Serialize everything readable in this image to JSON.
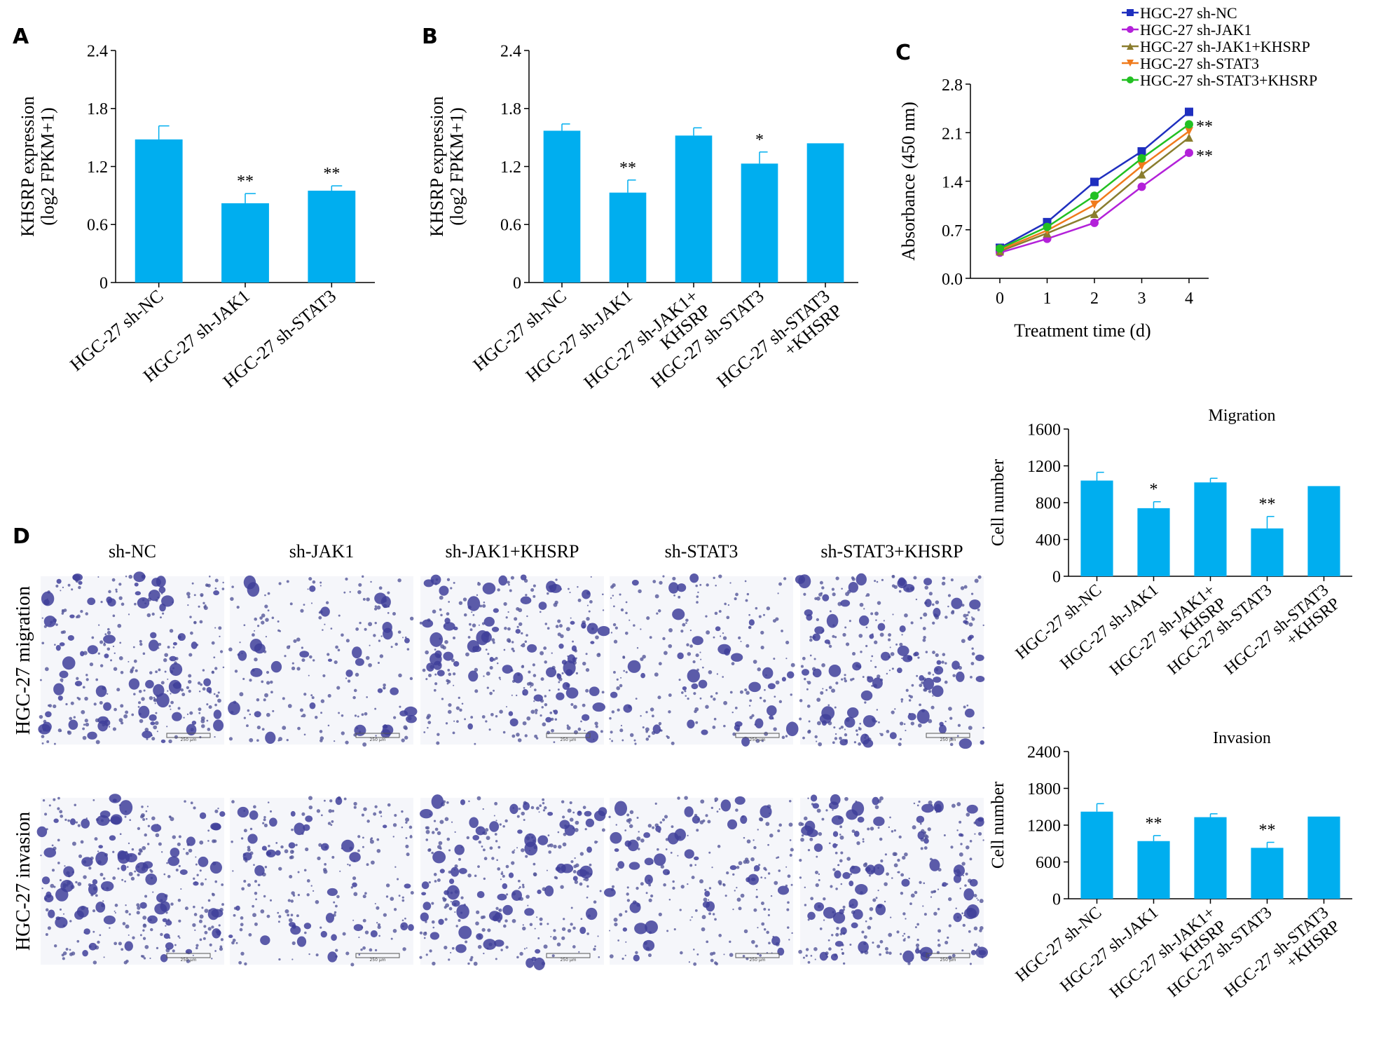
{
  "panel_labels": {
    "a": "A",
    "b": "B",
    "c": "C",
    "d": "D"
  },
  "colors": {
    "bar": "#00AEEF",
    "axis": "#000000",
    "stain": "#3F3F9A",
    "nc": "#1F2FBF",
    "jak1": "#B321D9",
    "jak1_khsrp": "#8A7D2E",
    "stat3": "#F07A1C",
    "stat3_khsrp": "#22C022"
  },
  "chart_data": [
    {
      "id": "A",
      "type": "bar",
      "categories": [
        "HGC-27 sh-NC",
        "HGC-27 sh-JAK1",
        "HGC-27 sh-STAT3"
      ],
      "values": [
        1.48,
        0.82,
        0.95
      ],
      "errors": [
        0.14,
        0.1,
        0.05
      ],
      "significance": [
        "",
        "**",
        "**"
      ],
      "ylabel": [
        "KHSRP expression",
        "(log2 FPKM+1)"
      ],
      "yticks": [
        "0",
        "0.6",
        "1.2",
        "1.8",
        "2.4"
      ],
      "ylim": [
        0,
        2.4
      ]
    },
    {
      "id": "B",
      "type": "bar",
      "categories": [
        [
          "HGC-27 sh-NC"
        ],
        [
          "HGC-27 sh-JAK1"
        ],
        [
          "HGC-27 sh-JAK1+",
          "KHSRP"
        ],
        [
          "HGC-27 sh-STAT3"
        ],
        [
          "HGC-27 sh-STAT3",
          "+KHSRP"
        ]
      ],
      "values": [
        1.57,
        0.93,
        1.52,
        1.23,
        1.44
      ],
      "errors": [
        0.07,
        0.13,
        0.08,
        0.12,
        0
      ],
      "significance": [
        "",
        "**",
        "",
        "*",
        ""
      ],
      "ylabel": [
        "KHSRP expression",
        "(log2 FPKM+1)"
      ],
      "yticks": [
        "0",
        "0.6",
        "1.2",
        "1.8",
        "2.4"
      ],
      "ylim": [
        0,
        2.4
      ]
    },
    {
      "id": "C",
      "type": "line",
      "x": [
        0,
        1,
        2,
        3,
        4
      ],
      "xticks": [
        "0",
        "1",
        "2",
        "3",
        "4"
      ],
      "yticks": [
        "0.0",
        "0.7",
        "1.4",
        "2.1",
        "2.8"
      ],
      "ylim": [
        0,
        2.8
      ],
      "xlabel": "Treatment time (d)",
      "ylabel": "Absorbance (450 nm)",
      "legend_position": "top",
      "series": [
        {
          "name": "HGC-27 sh-NC",
          "values": [
            0.44,
            0.81,
            1.39,
            1.83,
            2.4
          ],
          "color": "#1F2FBF",
          "marker": "square"
        },
        {
          "name": "HGC-27 sh-JAK1",
          "values": [
            0.37,
            0.57,
            0.8,
            1.32,
            1.81
          ],
          "color": "#B321D9",
          "marker": "circle"
        },
        {
          "name": "HGC-27 sh-JAK1+KHSRP",
          "values": [
            0.39,
            0.65,
            0.93,
            1.5,
            2.03
          ],
          "color": "#8A7D2E",
          "marker": "triangle-up"
        },
        {
          "name": "HGC-27 sh-STAT3",
          "values": [
            0.41,
            0.69,
            1.06,
            1.62,
            2.12
          ],
          "color": "#F07A1C",
          "marker": "triangle-down"
        },
        {
          "name": "HGC-27 sh-STAT3+KHSRP",
          "values": [
            0.43,
            0.74,
            1.19,
            1.73,
            2.22
          ],
          "color": "#22C022",
          "marker": "circle"
        }
      ],
      "annotations": [
        "**",
        "**"
      ]
    },
    {
      "id": "D-migration",
      "type": "bar",
      "title": "Migration",
      "categories": [
        [
          "HGC-27 sh-NC"
        ],
        [
          "HGC-27 sh-JAK1"
        ],
        [
          "HGC-27 sh-JAK1+",
          "KHSRP"
        ],
        [
          "HGC-27 sh-STAT3"
        ],
        [
          "HGC-27 sh-STAT3",
          "+KHSRP"
        ]
      ],
      "values": [
        1040,
        740,
        1020,
        520,
        980
      ],
      "errors": [
        90,
        70,
        45,
        130,
        0
      ],
      "significance": [
        "",
        "*",
        "",
        "**",
        ""
      ],
      "ylabel": [
        "Cell number"
      ],
      "yticks": [
        "0",
        "400",
        "800",
        "1200",
        "1600"
      ],
      "ylim": [
        0,
        1600
      ]
    },
    {
      "id": "D-invasion",
      "type": "bar",
      "title": "Invasion",
      "categories": [
        [
          "HGC-27 sh-NC"
        ],
        [
          "HGC-27 sh-JAK1"
        ],
        [
          "HGC-27 sh-JAK1+",
          "KHSRP"
        ],
        [
          "HGC-27 sh-STAT3"
        ],
        [
          "HGC-27 sh-STAT3",
          "+KHSRP"
        ]
      ],
      "values": [
        1420,
        940,
        1330,
        830,
        1340
      ],
      "errors": [
        130,
        90,
        55,
        90,
        0
      ],
      "significance": [
        "",
        "**",
        "",
        "**",
        ""
      ],
      "ylabel": [
        "Cell number"
      ],
      "yticks": [
        "0",
        "600",
        "1200",
        "1800",
        "2400"
      ],
      "ylim": [
        0,
        2400
      ]
    }
  ],
  "micrographs": {
    "columns": [
      "sh-NC",
      "sh-JAK1",
      "sh-JAK1+KHSRP",
      "sh-STAT3",
      "sh-STAT3+KHSRP"
    ],
    "rows": [
      "HGC-27 migration",
      "HGC-27 invasion"
    ],
    "scale_bar": "250 μm",
    "density": [
      [
        1.0,
        0.45,
        0.95,
        0.5,
        0.95
      ],
      [
        1.0,
        0.55,
        0.95,
        0.6,
        0.95
      ]
    ]
  }
}
